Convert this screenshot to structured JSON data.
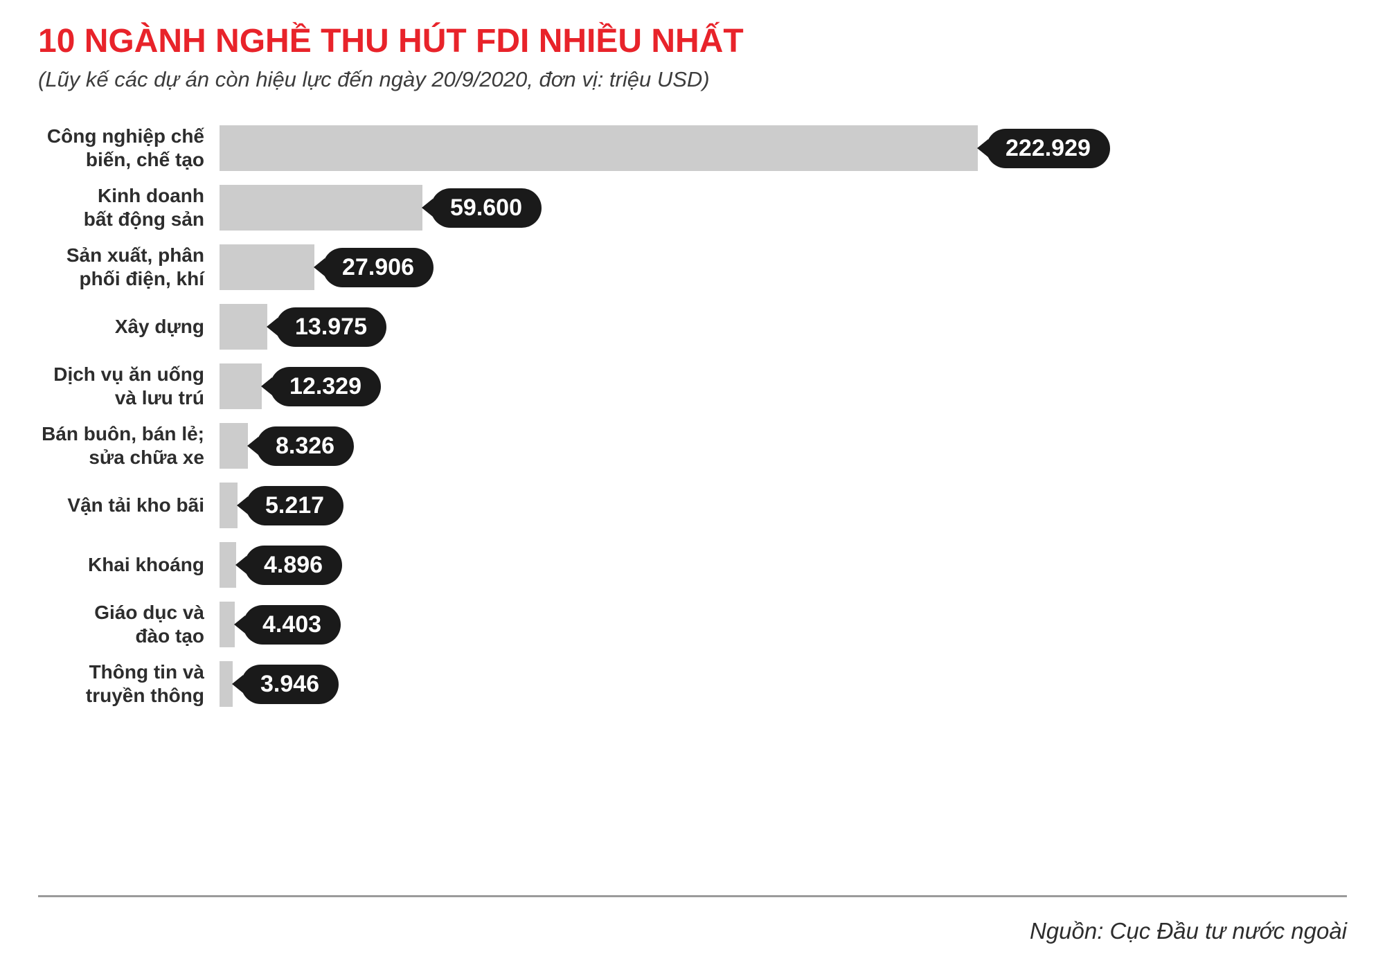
{
  "chart_data": {
    "type": "bar",
    "orientation": "horizontal",
    "title": "10 NGÀNH NGHỀ THU HÚT FDI NHIỀU NHẤT",
    "subtitle": "(Lũy kế các dự án còn hiệu lực đến ngày 20/9/2020, đơn vị: triệu USD)",
    "unit": "triệu USD",
    "source": "Nguồn: Cục Đầu tư nước ngoài",
    "xlim": [
      0,
      222929
    ],
    "legend": "none",
    "grid": "off",
    "rows": [
      {
        "label": "Công nghiệp chế\nbiến, chế tạo",
        "value": 222929,
        "value_label": "222.929"
      },
      {
        "label": "Kinh doanh\nbất động sản",
        "value": 59600,
        "value_label": "59.600"
      },
      {
        "label": "Sản xuất, phân\nphối điện, khí",
        "value": 27906,
        "value_label": "27.906"
      },
      {
        "label": "Xây dựng",
        "value": 13975,
        "value_label": "13.975"
      },
      {
        "label": "Dịch vụ ăn uống\nvà lưu trú",
        "value": 12329,
        "value_label": "12.329"
      },
      {
        "label": "Bán buôn, bán lẻ;\nsửa chữa xe",
        "value": 8326,
        "value_label": "8.326"
      },
      {
        "label": "Vận tải kho bãi",
        "value": 5217,
        "value_label": "5.217"
      },
      {
        "label": "Khai khoáng",
        "value": 4896,
        "value_label": "4.896"
      },
      {
        "label": "Giáo dục và\nđào tạo",
        "value": 4403,
        "value_label": "4.403"
      },
      {
        "label": "Thông tin và\ntruyền thông",
        "value": 3946,
        "value_label": "3.946"
      }
    ],
    "colors": {
      "title": "#e8232a",
      "bar": "#cccccc",
      "badge_bg": "#1a1a1a",
      "badge_text": "#ffffff"
    }
  }
}
